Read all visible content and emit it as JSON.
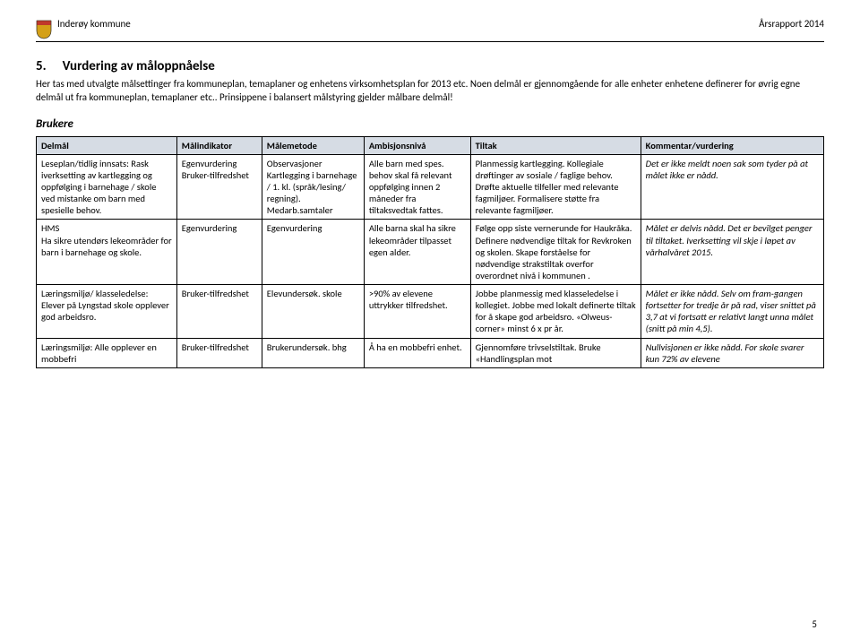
{
  "header": {
    "municipality": "Inderøy kommune",
    "report_title": "Årsrapport 2014"
  },
  "section": {
    "number": "5.",
    "title": "Vurdering av måloppnåelse",
    "intro": "Her tas med utvalgte målsettinger fra kommuneplan, temaplaner og enhetens virksomhetsplan for 2013 etc. Noen delmål er gjennomgående for alle enheter enhetene definerer for øvrig egne delmål ut fra kommuneplan, temaplaner etc.. Prinsippene i balansert målstyring gjelder målbare delmål!"
  },
  "subheading": "Brukere",
  "table": {
    "columns": [
      "Delmål",
      "Målindikator",
      "Målemetode",
      "Ambisjonsnivå",
      "Tiltak",
      "Kommentar/vurdering"
    ],
    "rows": [
      {
        "c1": "Leseplan/tidlig innsats: Rask iverksetting av kartlegging og oppfølging i barnehage / skole ved mistanke om barn med spesielle behov.",
        "c2": "Egenvurdering Bruker-tilfredshet",
        "c3": "Observasjoner Kartlegging i barnehage / 1. kl. (språk/lesing/ regning). Medarb.samtaler",
        "c4": "Alle barn med spes. behov skal få relevant oppfølging innen 2 måneder fra tiltaksvedtak fattes.",
        "c5": "Planmessig kartlegging. Kollegiale drøftinger av sosiale / faglige behov. Drøfte aktuelle tilfeller med relevante fagmiljøer. Formalisere støtte fra relevante fagmiljøer.",
        "c6": "Det er ikke meldt noen sak som tyder på at målet ikke er nådd."
      },
      {
        "c1": "HMS\nHa sikre utendørs lekeområder for barn i barnehage og skole.",
        "c2": "Egenvurdering",
        "c3": "Egenvurdering",
        "c4": "Alle barna skal ha sikre lekeområder tilpasset egen alder.",
        "c5": "Følge opp siste vernerunde for Haukråka. Definere nødvendige tiltak for Revkroken og skolen. Skape forståelse for nødvendige strakstiltak overfor overordnet nivå i kommunen .",
        "c6": "Målet er delvis nådd. Det er bevilget penger til tiltaket. Iverksetting vil skje i løpet av vårhalvåret 2015."
      },
      {
        "c1": "Læringsmiljø/ klasseledelse: Elever på Lyngstad skole opplever god arbeidsro.",
        "c2": "Bruker-tilfredshet",
        "c3": "Elevundersøk. skole",
        "c4": ">90% av elevene uttrykker tilfredshet.",
        "c5": "Jobbe planmessig med klasseledelse i kollegiet. Jobbe med lokalt definerte tiltak for å skape god arbeidsro. «Olweus-corner» minst 6 x pr år.",
        "c6": "Målet er ikke nådd. Selv om fram-gangen fortsetter for tredje år på rad, viser snittet på 3,7 at vi fortsatt er relativt langt unna målet (snitt på min 4,5)."
      },
      {
        "c1": "Læringsmiljø: Alle opplever en mobbefri",
        "c2": "Bruker-tilfredshet",
        "c3": "Brukerundersøk. bhg",
        "c4": "Å ha en mobbefri enhet.",
        "c5": "Gjennomføre trivselstiltak. Bruke «Handlingsplan mot",
        "c6": "Nullvisjonen er ikke nådd. For skole svarer kun 72% av elevene"
      }
    ]
  },
  "page_number": "5",
  "colors": {
    "header_bg": "#d6dce4",
    "shield_main": "#d4a017",
    "shield_top": "#c0392b"
  }
}
